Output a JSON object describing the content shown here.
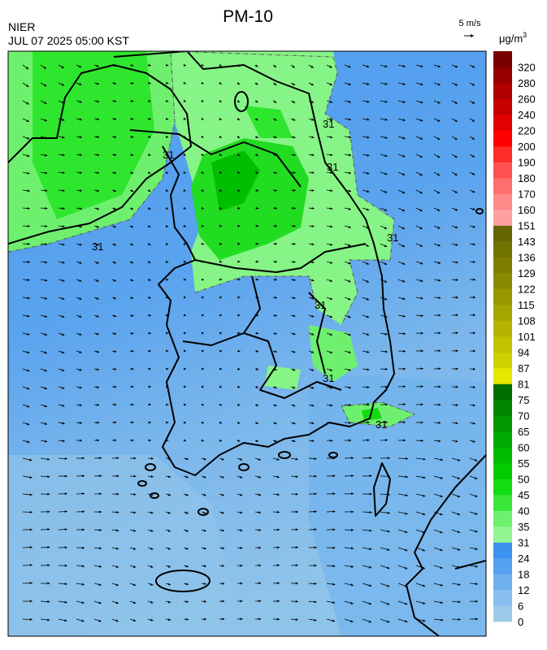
{
  "header": {
    "title": "PM-10",
    "agency": "NIER",
    "datetime": "JUL 07 2025 05:00 KST",
    "wind_scale": "5 m/s",
    "unit": "μg/m",
    "unit_exponent": "3"
  },
  "contour_labels": [
    "31",
    "31",
    "31",
    "31",
    "31",
    "31",
    "31",
    "31"
  ],
  "legend": [
    {
      "label": "0",
      "color": "#9ccbea"
    },
    {
      "label": "6",
      "color": "#88bff0"
    },
    {
      "label": "12",
      "color": "#6eb0ee"
    },
    {
      "label": "18",
      "color": "#56a2f0"
    },
    {
      "label": "24",
      "color": "#3d92f0"
    },
    {
      "label": "31",
      "color": "#92f592"
    },
    {
      "label": "35",
      "color": "#6ef06e"
    },
    {
      "label": "40",
      "color": "#3ae63a"
    },
    {
      "label": "45",
      "color": "#12dc12"
    },
    {
      "label": "50",
      "color": "#00cc00"
    },
    {
      "label": "55",
      "color": "#00bb00"
    },
    {
      "label": "60",
      "color": "#00aa00"
    },
    {
      "label": "65",
      "color": "#009800"
    },
    {
      "label": "70",
      "color": "#008600"
    },
    {
      "label": "75",
      "color": "#006e00"
    },
    {
      "label": "81",
      "color": "#e6e600"
    },
    {
      "label": "87",
      "color": "#d0d000"
    },
    {
      "label": "94",
      "color": "#c2c200"
    },
    {
      "label": "101",
      "color": "#b4b400"
    },
    {
      "label": "108",
      "color": "#a6a600"
    },
    {
      "label": "115",
      "color": "#989800"
    },
    {
      "label": "122",
      "color": "#8a8a00"
    },
    {
      "label": "129",
      "color": "#7e7e00"
    },
    {
      "label": "136",
      "color": "#727200"
    },
    {
      "label": "143",
      "color": "#666600"
    },
    {
      "label": "151",
      "color": "#ffa0a0"
    },
    {
      "label": "160",
      "color": "#ff8888"
    },
    {
      "label": "170",
      "color": "#ff6e6e"
    },
    {
      "label": "180",
      "color": "#ff5050"
    },
    {
      "label": "190",
      "color": "#ff2a2a"
    },
    {
      "label": "200",
      "color": "#ff0000"
    },
    {
      "label": "220",
      "color": "#e20000"
    },
    {
      "label": "240",
      "color": "#c80000"
    },
    {
      "label": "260",
      "color": "#b00000"
    },
    {
      "label": "280",
      "color": "#960000"
    },
    {
      "label": "320",
      "color": "#7a0000"
    }
  ]
}
